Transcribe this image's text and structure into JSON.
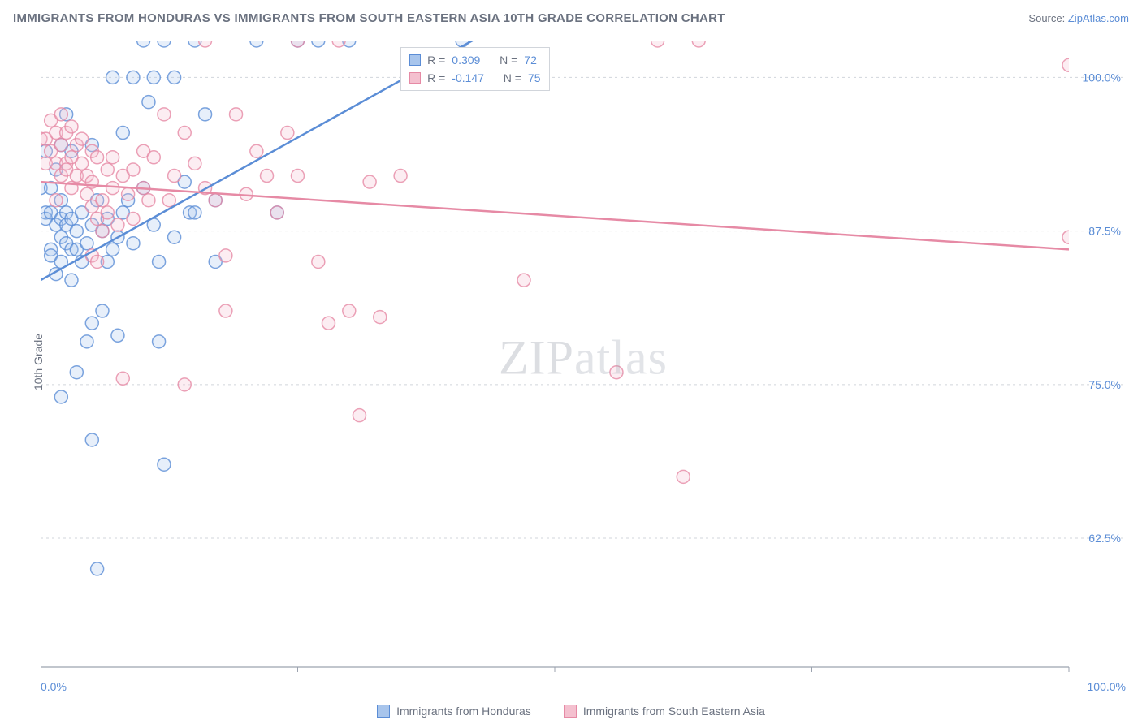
{
  "title": "IMMIGRANTS FROM HONDURAS VS IMMIGRANTS FROM SOUTH EASTERN ASIA 10TH GRADE CORRELATION CHART",
  "source_label": "Source:",
  "source_link": "ZipAtlas.com",
  "y_axis_label": "10th Grade",
  "watermark": {
    "a": "ZIP",
    "b": "atlas"
  },
  "chart": {
    "type": "scatter",
    "xlim": [
      0,
      100
    ],
    "ylim": [
      52,
      103
    ],
    "background_color": "#ffffff",
    "axis_color": "#9ca3af",
    "grid_color": "#d1d5db",
    "grid_dash": "3,4",
    "y_ticks": [
      62.5,
      75.0,
      87.5,
      100.0
    ],
    "y_tick_labels": [
      "62.5%",
      "75.0%",
      "87.5%",
      "100.0%"
    ],
    "x_ticks": [
      0,
      25,
      50,
      75,
      100
    ],
    "x_tick_visible_labels": {
      "min": "0.0%",
      "max": "100.0%"
    },
    "tick_label_color": "#5b8dd6",
    "tick_label_fontsize": 14,
    "marker_radius": 8,
    "marker_stroke_width": 1.5,
    "marker_fill_opacity": 0.28,
    "regression_line_width": 2.5
  },
  "series": [
    {
      "name": "Immigrants from Honduras",
      "color": "#5b8dd6",
      "fill": "#a8c5ec",
      "R": "0.309",
      "N": "72",
      "regression": {
        "x1": 0,
        "y1": 83.5,
        "x2": 42,
        "y2": 103
      },
      "points": [
        [
          0,
          91
        ],
        [
          0.5,
          89
        ],
        [
          0.5,
          88.5
        ],
        [
          0.5,
          94
        ],
        [
          1,
          91
        ],
        [
          1,
          89
        ],
        [
          1,
          86
        ],
        [
          1,
          85.5
        ],
        [
          1.5,
          88
        ],
        [
          1.5,
          92.5
        ],
        [
          1.5,
          84
        ],
        [
          2,
          90
        ],
        [
          2,
          88.5
        ],
        [
          2,
          87
        ],
        [
          2,
          85
        ],
        [
          2,
          94.5
        ],
        [
          2,
          74
        ],
        [
          2.5,
          89
        ],
        [
          2.5,
          86.5
        ],
        [
          2.5,
          88
        ],
        [
          2.5,
          97
        ],
        [
          3,
          86
        ],
        [
          3,
          83.5
        ],
        [
          3,
          94
        ],
        [
          3,
          88.5
        ],
        [
          3.5,
          87.5
        ],
        [
          3.5,
          86
        ],
        [
          3.5,
          76
        ],
        [
          4,
          85
        ],
        [
          4,
          89
        ],
        [
          4.5,
          86.5
        ],
        [
          4.5,
          78.5
        ],
        [
          5,
          88
        ],
        [
          5,
          94.5
        ],
        [
          5,
          70.5
        ],
        [
          5,
          80
        ],
        [
          5.5,
          60
        ],
        [
          5.5,
          90
        ],
        [
          6,
          87.5
        ],
        [
          6,
          81
        ],
        [
          6.5,
          88.5
        ],
        [
          6.5,
          85
        ],
        [
          7,
          100
        ],
        [
          7,
          86
        ],
        [
          7.5,
          87
        ],
        [
          7.5,
          79
        ],
        [
          8,
          95.5
        ],
        [
          8,
          89
        ],
        [
          8.5,
          90
        ],
        [
          9,
          86.5
        ],
        [
          9,
          100
        ],
        [
          10,
          91
        ],
        [
          10,
          103
        ],
        [
          10.5,
          98
        ],
        [
          11,
          88
        ],
        [
          11,
          100
        ],
        [
          11.5,
          85
        ],
        [
          11.5,
          78.5
        ],
        [
          12,
          103
        ],
        [
          12,
          68.5
        ],
        [
          13,
          87
        ],
        [
          13,
          100
        ],
        [
          14,
          91.5
        ],
        [
          14.5,
          89
        ],
        [
          15,
          103
        ],
        [
          15,
          89
        ],
        [
          16,
          97
        ],
        [
          17,
          85
        ],
        [
          17,
          90
        ],
        [
          21,
          103
        ],
        [
          23,
          89
        ],
        [
          25,
          103
        ],
        [
          27,
          103
        ],
        [
          30,
          103
        ],
        [
          41,
          101
        ],
        [
          41,
          103
        ]
      ]
    },
    {
      "name": "Immigrants from South Eastern Asia",
      "color": "#e68aa5",
      "fill": "#f4c0cf",
      "R": "-0.147",
      "N": "75",
      "regression": {
        "x1": 0,
        "y1": 91.5,
        "x2": 100,
        "y2": 86
      },
      "points": [
        [
          0,
          95
        ],
        [
          0.5,
          93
        ],
        [
          0.5,
          95
        ],
        [
          1,
          96.5
        ],
        [
          1,
          94
        ],
        [
          1.5,
          95.5
        ],
        [
          1.5,
          93
        ],
        [
          1.5,
          90
        ],
        [
          2,
          97
        ],
        [
          2,
          94.5
        ],
        [
          2,
          92
        ],
        [
          2.5,
          93
        ],
        [
          2.5,
          95.5
        ],
        [
          2.5,
          92.5
        ],
        [
          3,
          96
        ],
        [
          3,
          93.5
        ],
        [
          3,
          91
        ],
        [
          3.5,
          94.5
        ],
        [
          3.5,
          92
        ],
        [
          4,
          95
        ],
        [
          4,
          93
        ],
        [
          4.5,
          92
        ],
        [
          4.5,
          90.5
        ],
        [
          5,
          89.5
        ],
        [
          5,
          94
        ],
        [
          5,
          91.5
        ],
        [
          5,
          85.5
        ],
        [
          5.5,
          93.5
        ],
        [
          5.5,
          88.5
        ],
        [
          5.5,
          85
        ],
        [
          6,
          90
        ],
        [
          6,
          87.5
        ],
        [
          6.5,
          92.5
        ],
        [
          6.5,
          89
        ],
        [
          7,
          93.5
        ],
        [
          7,
          91
        ],
        [
          7.5,
          88
        ],
        [
          8,
          92
        ],
        [
          8,
          75.5
        ],
        [
          8.5,
          90.5
        ],
        [
          9,
          92.5
        ],
        [
          9,
          88.5
        ],
        [
          10,
          94
        ],
        [
          10,
          91
        ],
        [
          10.5,
          90
        ],
        [
          11,
          93.5
        ],
        [
          12,
          97
        ],
        [
          12.5,
          90
        ],
        [
          13,
          92
        ],
        [
          14,
          95.5
        ],
        [
          14,
          75
        ],
        [
          15,
          93
        ],
        [
          16,
          103
        ],
        [
          16,
          91
        ],
        [
          17,
          90
        ],
        [
          18,
          85.5
        ],
        [
          18,
          81
        ],
        [
          19,
          97
        ],
        [
          20,
          90.5
        ],
        [
          21,
          94
        ],
        [
          22,
          92
        ],
        [
          23,
          89
        ],
        [
          24,
          95.5
        ],
        [
          25,
          103
        ],
        [
          25,
          92
        ],
        [
          27,
          85
        ],
        [
          28,
          80
        ],
        [
          29,
          103
        ],
        [
          30,
          81
        ],
        [
          31,
          72.5
        ],
        [
          32,
          91.5
        ],
        [
          33,
          80.5
        ],
        [
          35,
          92
        ],
        [
          47,
          83.5
        ],
        [
          56,
          76
        ],
        [
          60,
          103
        ],
        [
          62.5,
          67.5
        ],
        [
          64,
          103
        ],
        [
          100,
          101
        ],
        [
          100,
          87
        ]
      ]
    }
  ],
  "legend": {
    "items": [
      {
        "label": "Immigrants from Honduras",
        "color": "#5b8dd6",
        "fill": "#a8c5ec"
      },
      {
        "label": "Immigrants from South Eastern Asia",
        "color": "#e68aa5",
        "fill": "#f4c0cf"
      }
    ]
  },
  "top_legend": {
    "R_label": "R =",
    "N_label": "N ="
  }
}
